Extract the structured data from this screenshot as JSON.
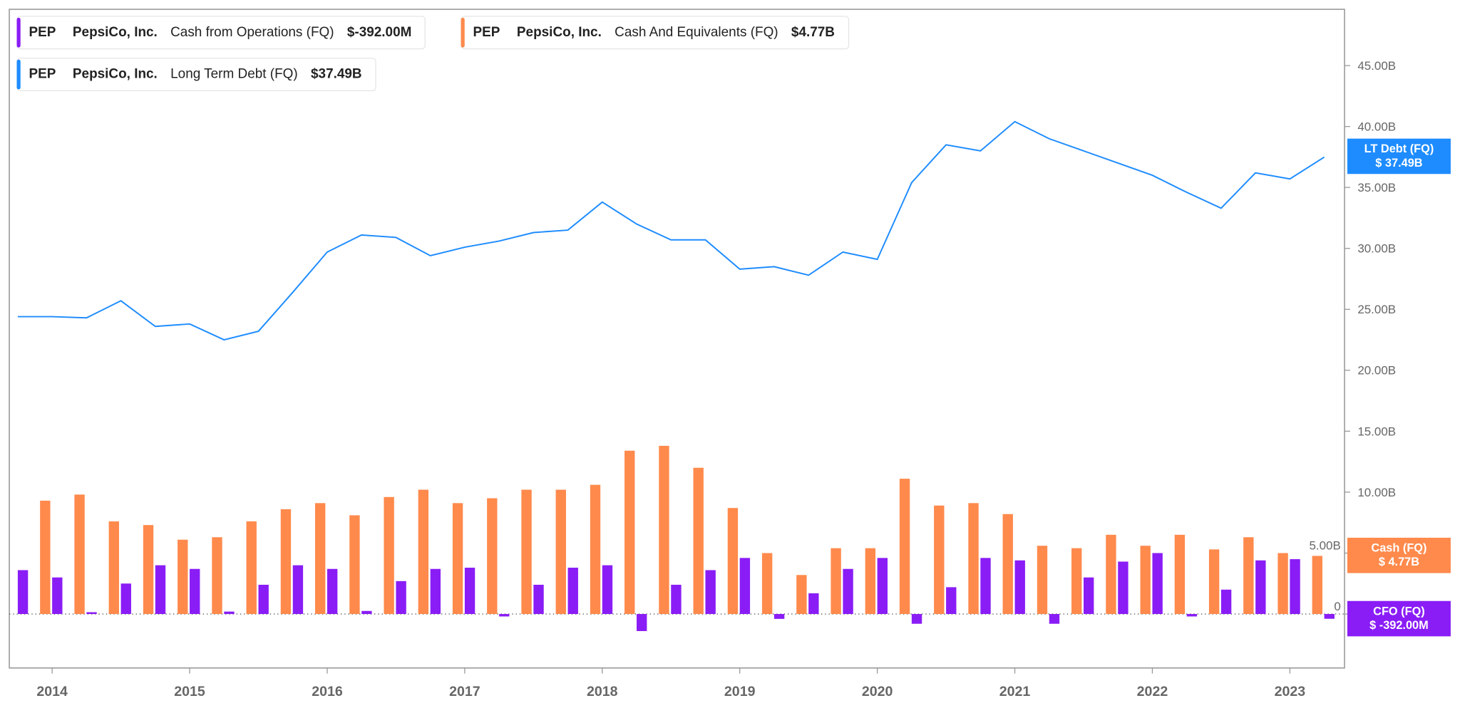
{
  "legend": [
    {
      "ticker": "PEP",
      "company": "PepsiCo, Inc.",
      "metric": "Cash from Operations (FQ)",
      "value": "$-392.00M",
      "color": "#8a1df6"
    },
    {
      "ticker": "PEP",
      "company": "PepsiCo, Inc.",
      "metric": "Cash And Equivalents (FQ)",
      "value": "$4.77B",
      "color": "#ff8a4c"
    },
    {
      "ticker": "PEP",
      "company": "PepsiCo, Inc.",
      "metric": "Long Term Debt (FQ)",
      "value": "$37.49B",
      "color": "#1e8cff"
    }
  ],
  "tags": [
    {
      "label": "LT Debt (FQ)",
      "value": "$ 37.49B",
      "color": "#1e8cff"
    },
    {
      "label": "Cash (FQ)",
      "value": "$ 4.77B",
      "color": "#ff8a4c"
    },
    {
      "label": "CFO (FQ)",
      "value": "$ -392.00M",
      "color": "#8a1df6"
    }
  ],
  "chart_data": {
    "type": "bar+line",
    "ylim": [
      -4.3,
      49
    ],
    "y_ticks": [
      "0",
      "5.00B",
      "10.00B",
      "15.00B",
      "20.00B",
      "25.00B",
      "30.00B",
      "35.00B",
      "40.00B",
      "45.00B"
    ],
    "y_tick_values": [
      0,
      5,
      10,
      15,
      20,
      25,
      30,
      35,
      40,
      45
    ],
    "x_ticks": [
      "2014",
      "2015",
      "2016",
      "2017",
      "2018",
      "2019",
      "2020",
      "2021",
      "2022",
      "2023"
    ],
    "grid": false,
    "units": "B USD",
    "dates": [
      "2013-09",
      "2013-12",
      "2014-03",
      "2014-06",
      "2014-09",
      "2014-12",
      "2015-03",
      "2015-06",
      "2015-09",
      "2015-12",
      "2016-03",
      "2016-06",
      "2016-09",
      "2016-12",
      "2017-03",
      "2017-06",
      "2017-09",
      "2017-12",
      "2018-03",
      "2018-06",
      "2018-09",
      "2018-12",
      "2019-03",
      "2019-06",
      "2019-09",
      "2019-12",
      "2020-03",
      "2020-06",
      "2020-09",
      "2020-12",
      "2021-03",
      "2021-06",
      "2021-09",
      "2021-12",
      "2022-03",
      "2022-06",
      "2022-09",
      "2022-12",
      "2023-03"
    ],
    "series": [
      {
        "name": "Cash And Equivalents (FQ)",
        "type": "bar",
        "color": "#ff8a4c",
        "values": [
          null,
          9.3,
          9.8,
          7.6,
          7.3,
          6.1,
          6.3,
          7.6,
          8.6,
          9.1,
          8.1,
          9.6,
          10.2,
          9.1,
          9.5,
          10.2,
          10.2,
          10.6,
          13.4,
          13.8,
          12.0,
          8.7,
          5.0,
          3.2,
          5.4,
          5.4,
          11.1,
          8.9,
          9.1,
          8.2,
          5.6,
          5.4,
          6.5,
          5.6,
          6.5,
          5.3,
          6.3,
          5.0,
          4.77
        ]
      },
      {
        "name": "Cash from Operations (FQ)",
        "type": "bar",
        "color": "#8a1df6",
        "values": [
          3.6,
          3.0,
          0.15,
          2.5,
          4.0,
          3.7,
          0.2,
          2.4,
          4.0,
          3.7,
          0.25,
          2.7,
          3.7,
          3.8,
          -0.2,
          2.4,
          3.8,
          4.0,
          -1.4,
          2.4,
          3.6,
          4.6,
          -0.4,
          1.7,
          3.7,
          4.6,
          -0.8,
          2.2,
          4.6,
          4.4,
          -0.8,
          3.0,
          4.3,
          5.0,
          -0.2,
          2.0,
          4.4,
          4.5,
          -0.392
        ]
      },
      {
        "name": "Long Term Debt (FQ)",
        "type": "line",
        "color": "#1e8cff",
        "values": [
          24.4,
          24.4,
          24.3,
          25.7,
          23.6,
          23.8,
          22.5,
          23.2,
          26.4,
          29.7,
          31.1,
          30.9,
          29.4,
          30.1,
          30.6,
          31.3,
          31.5,
          33.8,
          32.0,
          30.7,
          30.7,
          28.3,
          28.5,
          27.8,
          29.7,
          29.1,
          35.4,
          38.5,
          38.0,
          40.4,
          39.0,
          38.0,
          37.0,
          36.0,
          34.6,
          33.3,
          36.2,
          35.7,
          37.49
        ]
      }
    ]
  }
}
